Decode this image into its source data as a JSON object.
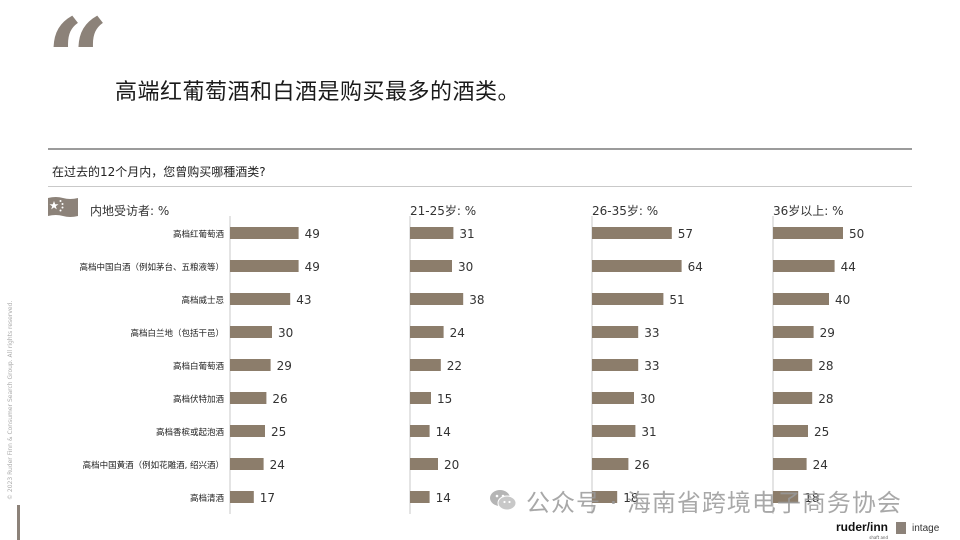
{
  "header": {
    "quote_mark": "“",
    "headline": "高端红葡萄酒和白酒是购买最多的酒类。"
  },
  "question": "在过去的12个月内，您曾购买哪種酒类?",
  "colors": {
    "bar": "#8c7d6b",
    "accent": "#8c8279",
    "rule": "#9b9b9b"
  },
  "footer": {
    "side_text": "© 2023 Ruder Finn & Consumer Search Group. All rights reserved.",
    "watermark": "公众号 · 海南省跨境电子商务协会",
    "logo_ruderfinn": "ruder/inn",
    "logo_ruderfinn_sub": "shaft and",
    "logo_intage": "intage"
  },
  "chart_data": {
    "type": "bar",
    "orientation": "horizontal",
    "categories": [
      "高档红葡萄酒",
      "高档中国白酒（例如茅台、五粮液等）",
      "高档威士忌",
      "高档白兰地（包括干邑）",
      "高档白葡萄酒",
      "高档伏特加酒",
      "高档香槟或起泡酒",
      "高档中国黄酒（例如花雕酒, 绍兴酒）",
      "高档清酒"
    ],
    "series": [
      {
        "name": "内地受访者: %",
        "values": [
          49,
          49,
          43,
          30,
          29,
          26,
          25,
          24,
          17
        ]
      },
      {
        "name": "21-25岁: %",
        "values": [
          31,
          30,
          38,
          24,
          22,
          15,
          14,
          20,
          14
        ]
      },
      {
        "name": "26-35岁: %",
        "values": [
          57,
          64,
          51,
          33,
          33,
          30,
          31,
          26,
          18
        ]
      },
      {
        "name": "36岁以上: %",
        "values": [
          50,
          44,
          40,
          29,
          28,
          28,
          25,
          24,
          18
        ]
      }
    ],
    "xlim": [
      0,
      100
    ],
    "grid": false,
    "legend": "none"
  }
}
